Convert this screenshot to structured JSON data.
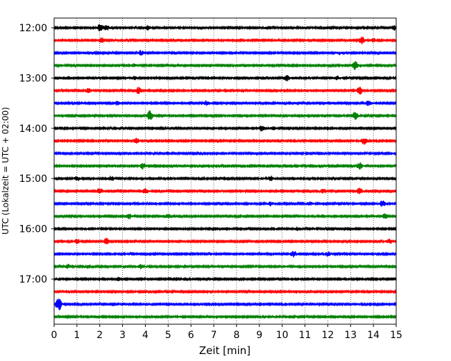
{
  "chart_data": {
    "type": "line",
    "subtype": "helicorder-seismogram",
    "xlabel": "Zeit  [min]",
    "ylabel": "UTC (Lokalzeit = UTC + 02:00)",
    "xlim": [
      0,
      15
    ],
    "x_ticks": [
      0,
      1,
      2,
      3,
      4,
      5,
      6,
      7,
      8,
      9,
      10,
      11,
      12,
      13,
      14,
      15
    ],
    "x_tick_labels": [
      "0",
      "1",
      "2",
      "3",
      "4",
      "5",
      "6",
      "7",
      "8",
      "9",
      "10",
      "11",
      "12",
      "13",
      "14",
      "15"
    ],
    "grid": "vertical dotted lines at each minute",
    "y_tick_labels": [
      "12:00",
      "13:00",
      "14:00",
      "15:00",
      "16:00",
      "17:00"
    ],
    "trace_interval_minutes": 15,
    "color_cycle": [
      "#000000",
      "#ff0000",
      "#0000ff",
      "#008000"
    ],
    "traces": [
      {
        "start": "12:00",
        "color": "#000000",
        "bursts": [
          [
            2.0,
            4.5
          ],
          [
            2.3,
            3.5
          ],
          [
            4.1,
            3.0
          ],
          [
            9.4,
            2.5
          ],
          [
            14.9,
            3.0
          ]
        ]
      },
      {
        "start": "12:15",
        "color": "#ff0000",
        "bursts": [
          [
            2.1,
            4.0
          ],
          [
            13.5,
            5.0
          ],
          [
            14.0,
            2.5
          ]
        ]
      },
      {
        "start": "12:30",
        "color": "#0000ff",
        "bursts": [
          [
            3.8,
            3.0
          ],
          [
            12.5,
            2.0
          ]
        ]
      },
      {
        "start": "12:45",
        "color": "#008000",
        "bursts": [
          [
            3.5,
            2.5
          ],
          [
            13.2,
            5.5
          ]
        ]
      },
      {
        "start": "13:00",
        "color": "#000000",
        "bursts": [
          [
            3.5,
            2.5
          ],
          [
            10.2,
            4.0
          ],
          [
            12.4,
            2.5
          ]
        ]
      },
      {
        "start": "13:15",
        "color": "#ff0000",
        "bursts": [
          [
            1.5,
            4.0
          ],
          [
            3.7,
            4.5
          ],
          [
            13.4,
            5.0
          ]
        ]
      },
      {
        "start": "13:30",
        "color": "#0000ff",
        "bursts": [
          [
            2.8,
            3.0
          ],
          [
            6.7,
            3.5
          ],
          [
            13.8,
            4.0
          ]
        ]
      },
      {
        "start": "13:45",
        "color": "#008000",
        "bursts": [
          [
            4.2,
            6.5
          ],
          [
            13.2,
            5.0
          ]
        ]
      },
      {
        "start": "14:00",
        "color": "#000000",
        "bursts": [
          [
            9.1,
            3.5
          ],
          [
            9.6,
            2.5
          ]
        ]
      },
      {
        "start": "14:15",
        "color": "#ff0000",
        "bursts": [
          [
            3.6,
            3.5
          ],
          [
            13.6,
            5.0
          ]
        ]
      },
      {
        "start": "14:30",
        "color": "#0000ff",
        "bursts": [
          [
            5.0,
            2.0
          ]
        ]
      },
      {
        "start": "14:45",
        "color": "#008000",
        "bursts": [
          [
            3.9,
            4.0
          ],
          [
            13.4,
            4.5
          ]
        ]
      },
      {
        "start": "15:00",
        "color": "#000000",
        "bursts": [
          [
            1.0,
            3.0
          ],
          [
            2.5,
            3.0
          ],
          [
            9.5,
            3.5
          ]
        ]
      },
      {
        "start": "15:15",
        "color": "#ff0000",
        "bursts": [
          [
            2.0,
            4.0
          ],
          [
            4.0,
            4.0
          ],
          [
            11.8,
            3.0
          ],
          [
            13.4,
            4.5
          ]
        ]
      },
      {
        "start": "15:30",
        "color": "#0000ff",
        "bursts": [
          [
            9.5,
            2.5
          ],
          [
            11.2,
            3.0
          ],
          [
            14.4,
            4.0
          ]
        ]
      },
      {
        "start": "15:45",
        "color": "#008000",
        "bursts": [
          [
            3.3,
            3.5
          ],
          [
            5.0,
            3.0
          ],
          [
            14.5,
            4.0
          ]
        ]
      },
      {
        "start": "16:00",
        "color": "#000000",
        "bursts": [
          [
            10.7,
            3.0
          ]
        ]
      },
      {
        "start": "16:15",
        "color": "#ff0000",
        "bursts": [
          [
            1.0,
            3.0
          ],
          [
            2.3,
            4.5
          ],
          [
            14.7,
            3.0
          ]
        ]
      },
      {
        "start": "16:30",
        "color": "#0000ff",
        "bursts": [
          [
            10.5,
            4.5
          ],
          [
            12.0,
            3.0
          ]
        ]
      },
      {
        "start": "16:45",
        "color": "#008000",
        "bursts": [
          [
            0.6,
            3.0
          ],
          [
            1.5,
            2.5
          ],
          [
            3.8,
            3.0
          ]
        ]
      },
      {
        "start": "17:00",
        "color": "#000000",
        "bursts": [
          [
            2.8,
            2.0
          ]
        ]
      },
      {
        "start": "17:15",
        "color": "#ff0000",
        "bursts": [
          [
            10.6,
            2.5
          ]
        ]
      },
      {
        "start": "17:30",
        "color": "#0000ff",
        "bursts": [
          [
            0.2,
            9.0
          ]
        ]
      },
      {
        "start": "17:45",
        "color": "#008000",
        "bursts": []
      }
    ]
  }
}
